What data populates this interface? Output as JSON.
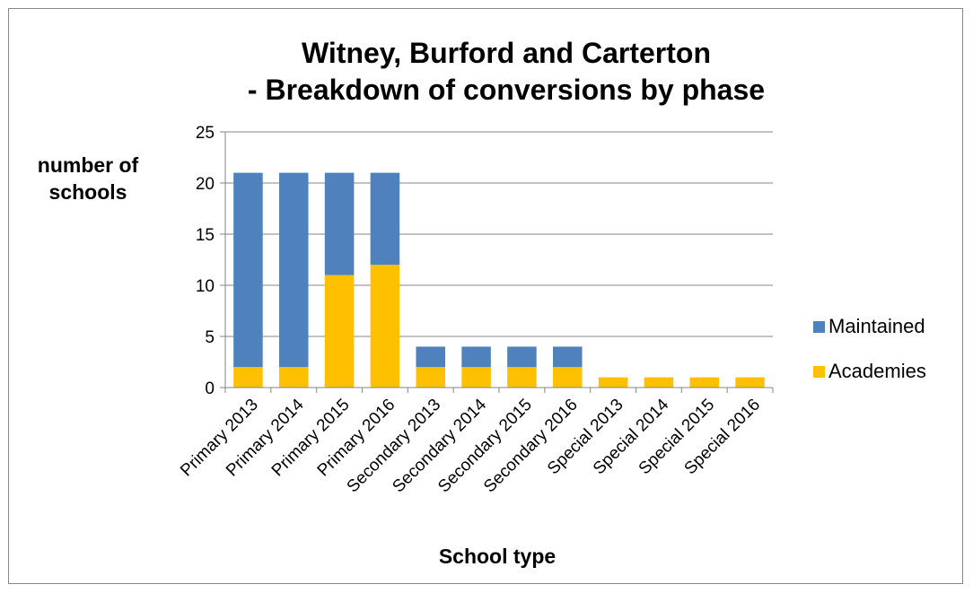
{
  "chart_data": {
    "type": "bar",
    "stacked": true,
    "title_lines": [
      "Witney, Burford and Carterton",
      "- Breakdown of conversions by phase"
    ],
    "ylabel_lines": [
      "number of",
      "schools"
    ],
    "xlabel": "School type",
    "categories": [
      "Primary 2013",
      "Primary 2014",
      "Primary 2015",
      "Primary 2016",
      "Secondary 2013",
      "Secondary 2014",
      "Secondary 2015",
      "Secondary 2016",
      "Special 2013",
      "Special 2014",
      "Special 2015",
      "Special 2016"
    ],
    "series": [
      {
        "name": "Academies",
        "color": "#FFC000",
        "values": [
          2,
          2,
          11,
          12,
          2,
          2,
          2,
          2,
          1,
          1,
          1,
          1
        ]
      },
      {
        "name": "Maintained",
        "color": "#4F81BD",
        "values": [
          19,
          19,
          10,
          9,
          2,
          2,
          2,
          2,
          0,
          0,
          0,
          0
        ]
      }
    ],
    "legend_order": [
      "Maintained",
      "Academies"
    ],
    "legend_position": "right",
    "ylim": [
      0,
      25
    ],
    "yticks": [
      0,
      5,
      10,
      15,
      20,
      25
    ],
    "grid": true,
    "gridline_color": "#868686",
    "axis_color": "#868686"
  }
}
